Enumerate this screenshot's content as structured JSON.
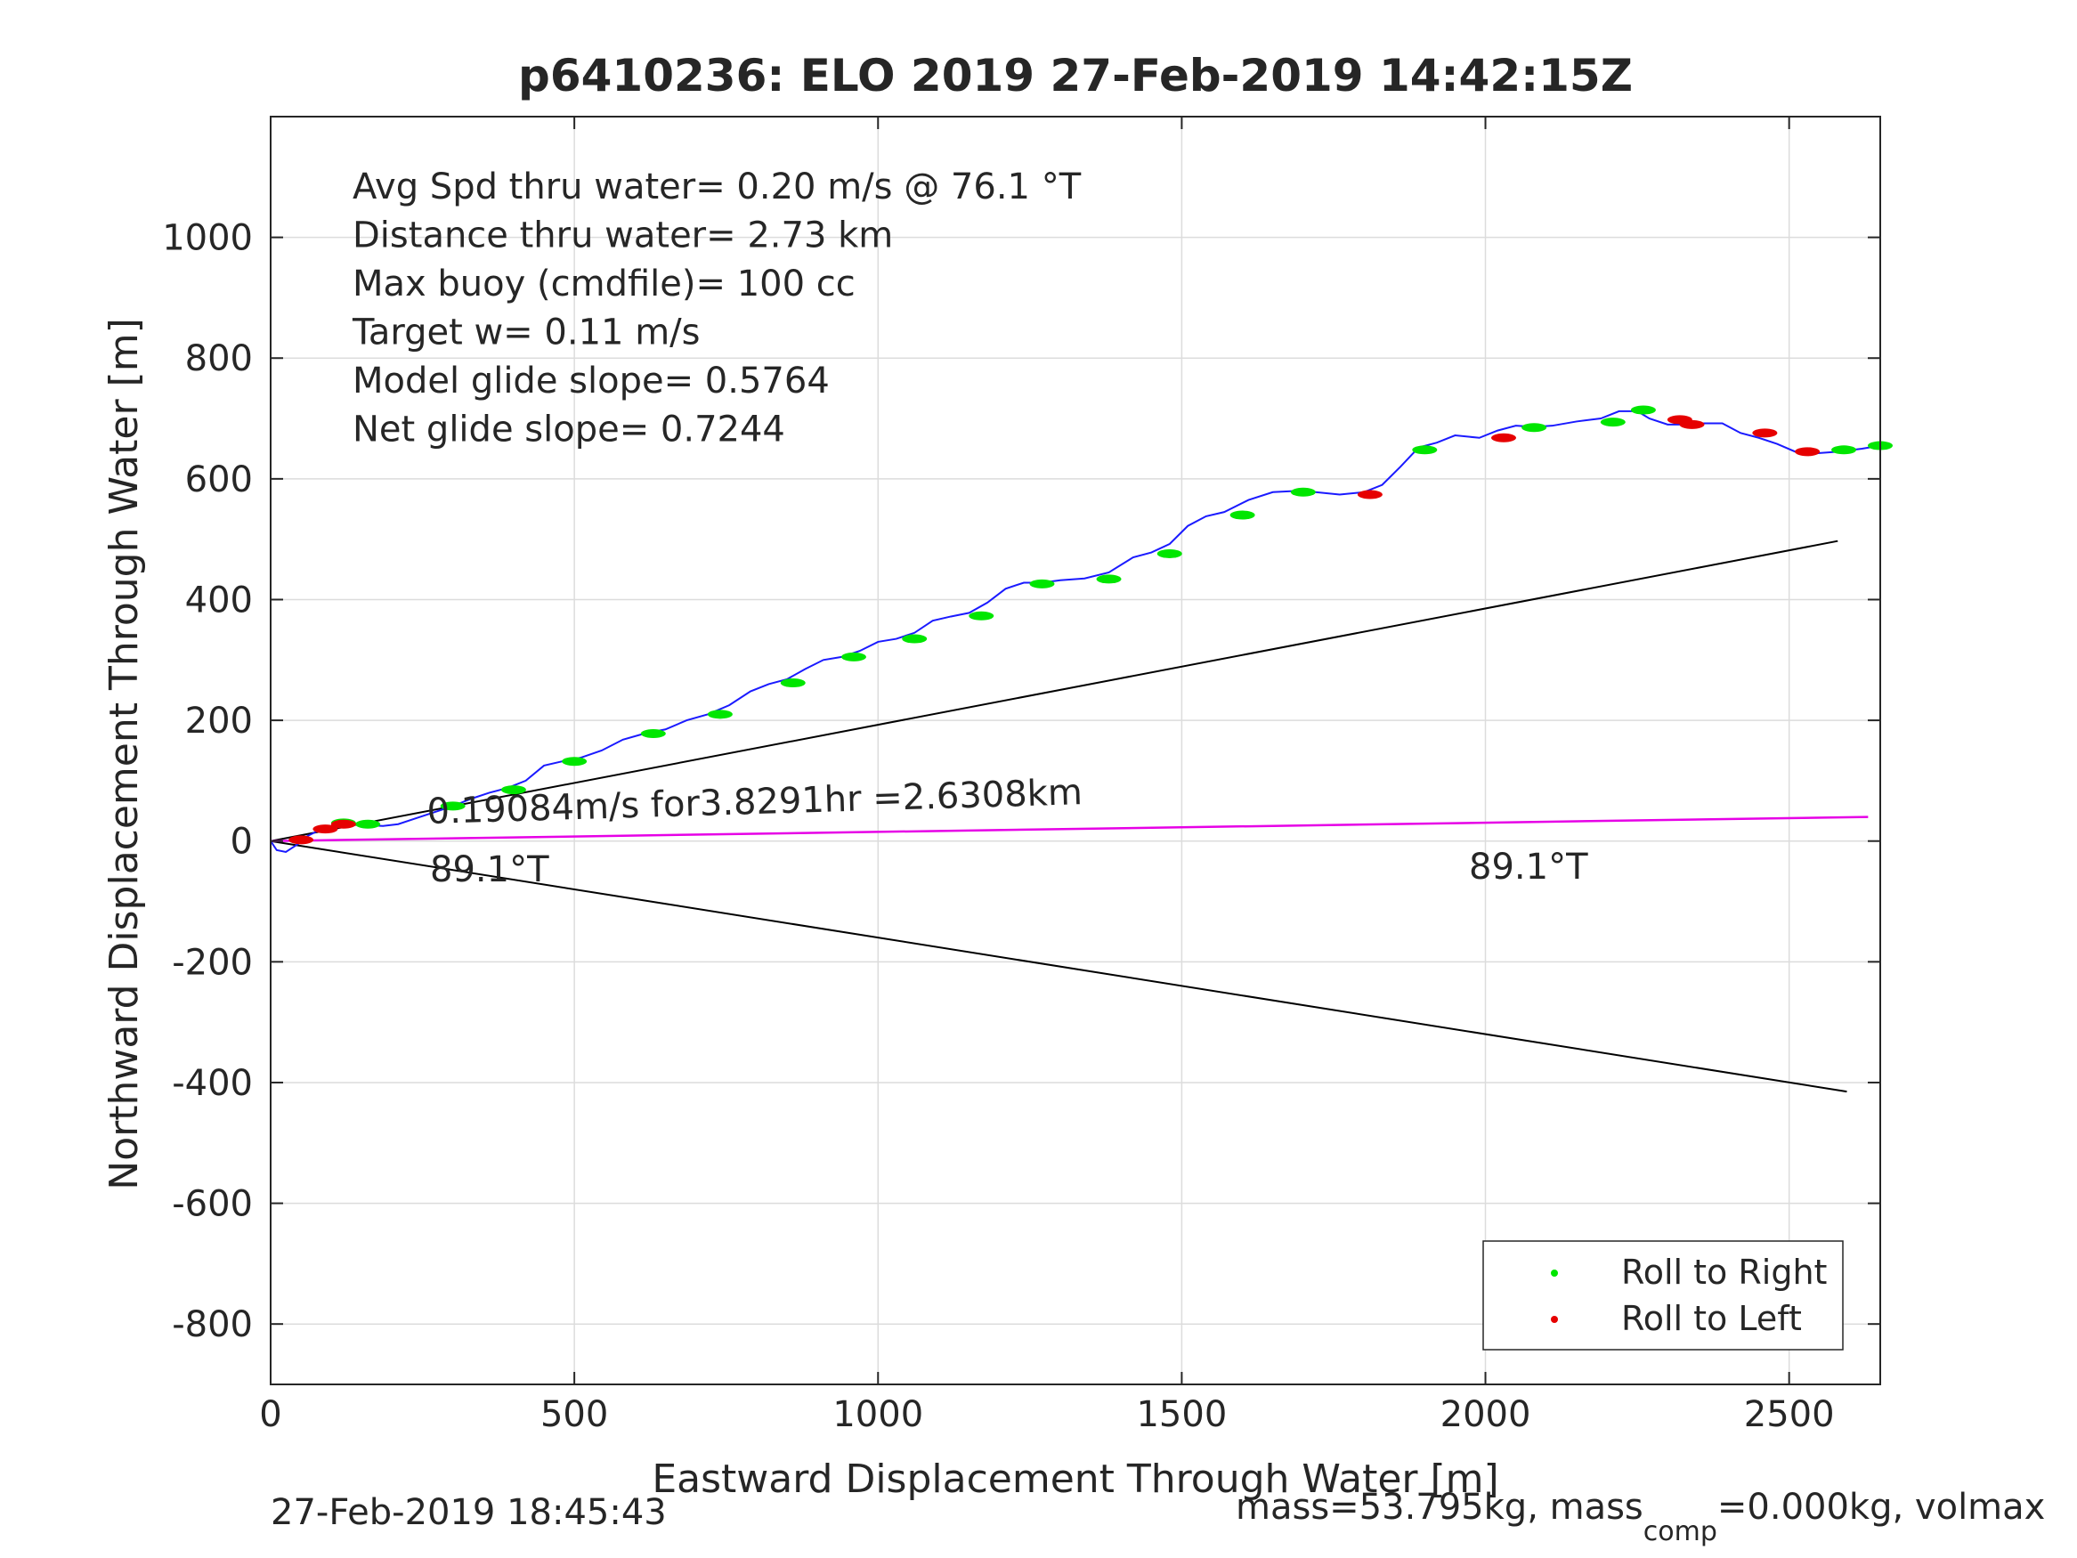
{
  "chart_data": {
    "type": "line",
    "title": "p6410236: ELO 2019 27-Feb-2019 14:42:15Z",
    "xlabel": "Eastward Displacement Through Water [m]",
    "ylabel": "Northward Displacement Through Water [m]",
    "xlim": [
      0,
      2650
    ],
    "ylim": [
      -900,
      1200
    ],
    "xticks": [
      0,
      500,
      1000,
      1500,
      2000,
      2500
    ],
    "yticks": [
      -800,
      -600,
      -400,
      -200,
      0,
      200,
      400,
      600,
      800,
      1000
    ],
    "grid": true,
    "legend_placement": "bottom-right",
    "stats_lines": [
      "Avg Spd thru water=  0.20 m/s @  76.1 °T",
      "Distance thru water=  2.73 km",
      "Max buoy (cmdfile)= 100 cc",
      "Target w= 0.11 m/s",
      "Model glide slope= 0.5764",
      "Net glide slope= 0.7244"
    ],
    "annotations": {
      "speed": "0.19084m/s for3.8291hr =2.6308km",
      "heading_left": "89.1°T",
      "heading_right": "89.1°T"
    },
    "footer": {
      "date": "27-Feb-2019 18:45:43",
      "mass_prefix": "mass=53.795kg, mass",
      "mass_sub": "comp",
      "mass_suffix": "=0.000kg, volmax"
    },
    "colors": {
      "track": "#1a1aff",
      "roll_right": "#00e600",
      "roll_left": "#e60000",
      "current": "#e600e6",
      "cone": "#000000"
    },
    "legend": [
      {
        "label": "Roll to Right",
        "color": "#00e600"
      },
      {
        "label": "Roll to Left",
        "color": "#e60000"
      }
    ],
    "track": {
      "x": [
        0,
        10,
        25,
        45,
        60,
        80,
        100,
        120,
        145,
        165,
        185,
        210,
        240,
        270,
        300,
        330,
        360,
        390,
        420,
        450,
        480,
        510,
        545,
        580,
        615,
        650,
        685,
        720,
        755,
        790,
        820,
        850,
        880,
        910,
        940,
        970,
        1000,
        1030,
        1060,
        1090,
        1120,
        1150,
        1180,
        1210,
        1240,
        1270,
        1300,
        1340,
        1380,
        1420,
        1450,
        1480,
        1510,
        1540,
        1570,
        1610,
        1650,
        1690,
        1720,
        1760,
        1800,
        1830,
        1860,
        1890,
        1920,
        1950,
        1990,
        2020,
        2050,
        2080,
        2110,
        2150,
        2190,
        2220,
        2250,
        2270,
        2300,
        2330,
        2360,
        2390,
        2420,
        2450,
        2480,
        2510,
        2540,
        2580,
        2620,
        2650
      ],
      "y": [
        0,
        -15,
        -18,
        -5,
        8,
        18,
        25,
        28,
        28,
        26,
        25,
        28,
        38,
        48,
        58,
        70,
        80,
        88,
        100,
        125,
        132,
        138,
        150,
        168,
        178,
        185,
        200,
        210,
        225,
        248,
        260,
        268,
        285,
        300,
        305,
        315,
        330,
        335,
        345,
        365,
        372,
        378,
        395,
        418,
        428,
        428,
        432,
        435,
        445,
        470,
        478,
        492,
        522,
        538,
        545,
        565,
        578,
        580,
        578,
        574,
        578,
        590,
        620,
        652,
        660,
        672,
        668,
        680,
        688,
        686,
        688,
        695,
        700,
        712,
        712,
        700,
        690,
        690,
        692,
        692,
        676,
        668,
        658,
        645,
        642,
        645,
        650,
        655
      ],
      "right_roll_x": [
        120,
        160,
        300,
        400,
        500,
        630,
        740,
        860,
        960,
        1060,
        1170,
        1270,
        1380,
        1480,
        1600,
        1700,
        1900,
        2080,
        2210,
        2260,
        2590,
        2650
      ],
      "right_roll_y": [
        30,
        28,
        58,
        85,
        132,
        178,
        210,
        262,
        305,
        335,
        373,
        426,
        434,
        476,
        540,
        578,
        648,
        685,
        694,
        714,
        648,
        655
      ],
      "left_roll_x": [
        50,
        90,
        120,
        1810,
        2030,
        2320,
        2340,
        2460,
        2530
      ],
      "left_roll_y": [
        2,
        20,
        28,
        574,
        668,
        698,
        690,
        676,
        645
      ]
    },
    "cone_upper": {
      "x": [
        0,
        2580
      ],
      "y": [
        0,
        497
      ]
    },
    "cone_lower": {
      "x": [
        0,
        2595
      ],
      "y": [
        0,
        -415
      ]
    },
    "current_line": {
      "x": [
        0,
        2630
      ],
      "y": [
        0,
        40
      ]
    }
  }
}
